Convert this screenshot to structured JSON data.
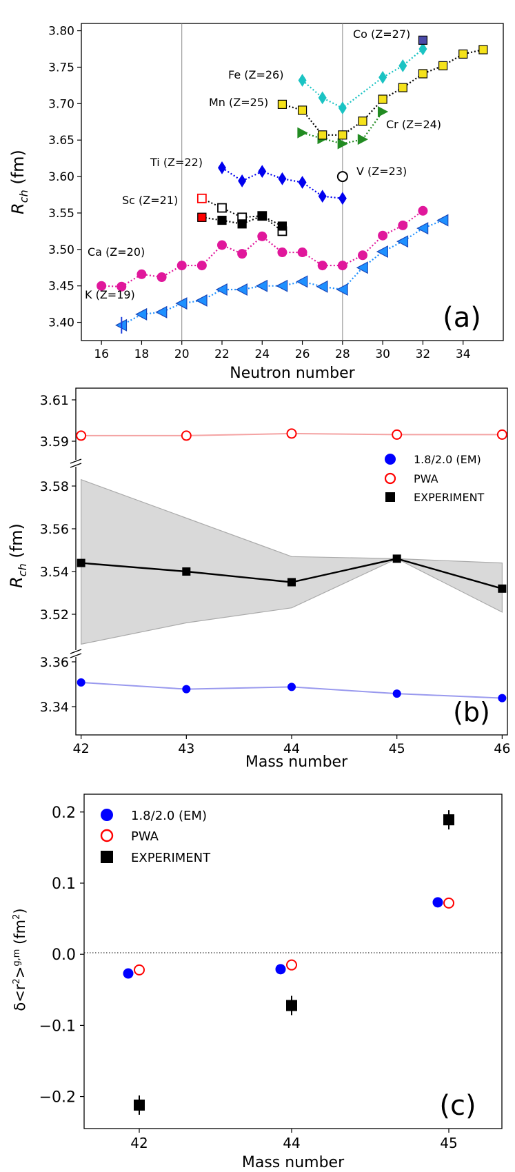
{
  "chart_data": [
    {
      "panel": "a",
      "type": "scatter",
      "panel_label": "(a)",
      "xlabel": "Neutron number",
      "ylabel": "R_ch (fm)",
      "ylabel_main": "R",
      "ylabel_sub": "ch",
      "ylabel_unit": " (fm)",
      "xlim": [
        15,
        36
      ],
      "ylim": [
        3.375,
        3.81
      ],
      "xticks": [
        16,
        18,
        20,
        22,
        24,
        26,
        28,
        30,
        32,
        34
      ],
      "yticks": [
        3.4,
        3.45,
        3.5,
        3.55,
        3.6,
        3.65,
        3.7,
        3.75,
        3.8
      ],
      "ytick_labels": [
        "3.40",
        "3.45",
        "3.50",
        "3.55",
        "3.60",
        "3.65",
        "3.70",
        "3.75",
        "3.80"
      ],
      "vlines": [
        20,
        28
      ],
      "series": [
        {
          "name": "K",
          "label": "K  (Z=19)",
          "color": "#1e90ff",
          "marker": "triangle-left",
          "x": [
            17,
            18,
            19,
            20,
            21,
            22,
            23,
            24,
            25,
            26,
            27,
            28,
            29,
            30,
            31,
            32,
            33
          ],
          "y": [
            3.396,
            3.411,
            3.414,
            3.426,
            3.43,
            3.445,
            3.445,
            3.45,
            3.45,
            3.456,
            3.449,
            3.445,
            3.475,
            3.497,
            3.511,
            3.529,
            3.54
          ]
        },
        {
          "name": "Ca",
          "label": "Ca (Z=20)",
          "color": "#e0179b",
          "marker": "circle",
          "x": [
            16,
            17,
            18,
            19,
            20,
            21,
            22,
            23,
            24,
            25,
            26,
            27,
            28,
            29,
            30,
            31,
            32
          ],
          "y": [
            3.45,
            3.449,
            3.466,
            3.462,
            3.478,
            3.478,
            3.506,
            3.494,
            3.518,
            3.496,
            3.496,
            3.478,
            3.478,
            3.492,
            3.519,
            3.533,
            3.553
          ]
        },
        {
          "name": "Sc",
          "label": "Sc (Z=21)",
          "color": "#000000",
          "marker": "square",
          "x": [
            21,
            22,
            23,
            24,
            25
          ],
          "y": [
            3.544,
            3.54,
            3.535,
            3.546,
            3.532
          ]
        },
        {
          "name": "Ti",
          "label": "Ti (Z=22)",
          "color": "#0000ee",
          "marker": "diamond",
          "x": [
            22,
            23,
            24,
            25,
            26,
            27,
            28
          ],
          "y": [
            3.612,
            3.594,
            3.607,
            3.597,
            3.592,
            3.573,
            3.57
          ]
        },
        {
          "name": "V",
          "label": "V (Z=23)",
          "color": "#000000",
          "marker": "open-circle",
          "x": [
            28
          ],
          "y": [
            3.6
          ]
        },
        {
          "name": "Cr",
          "label": "Cr (Z=24)",
          "color": "#228b22",
          "marker": "triangle-right",
          "x": [
            26,
            27,
            28,
            29,
            30
          ],
          "y": [
            3.66,
            3.652,
            3.645,
            3.651,
            3.689
          ]
        },
        {
          "name": "Mn",
          "label": "Mn (Z=25)",
          "color": "#f5e21b",
          "marker": "square",
          "x": [
            25,
            26,
            27,
            28,
            29,
            30,
            31,
            32,
            33,
            34,
            35
          ],
          "y": [
            3.699,
            3.691,
            3.657,
            3.657,
            3.676,
            3.706,
            3.722,
            3.741,
            3.752,
            3.768,
            3.774
          ]
        },
        {
          "name": "Fe",
          "label": "Fe (Z=26)",
          "color": "#1ac3c3",
          "marker": "diamond",
          "x": [
            26,
            27,
            28,
            30,
            31,
            32
          ],
          "y": [
            3.732,
            3.708,
            3.694,
            3.736,
            3.752,
            3.775
          ]
        },
        {
          "name": "Co",
          "label": "Co (Z=27)",
          "color": "#4a4aa8",
          "marker": "square",
          "x": [
            32
          ],
          "y": [
            3.787
          ]
        }
      ],
      "sc_pwa_open": {
        "x": [
          21,
          22,
          23,
          24,
          25
        ],
        "y": [
          3.57,
          3.557,
          3.544,
          3.546,
          3.525
        ]
      },
      "sc_highlight": {
        "x": 21,
        "y": 3.544
      },
      "annotations": [
        "Co (Z=27)",
        "Fe (Z=26)",
        "Mn (Z=25)",
        "Cr (Z=24)",
        "Ti (Z=22)",
        "V (Z=23)",
        "Sc (Z=21)",
        "Ca (Z=20)",
        "K  (Z=19)"
      ]
    },
    {
      "panel": "b",
      "type": "line",
      "panel_label": "(b)",
      "xlabel": "Mass number",
      "ylabel": "R_ch (fm)",
      "ylabel_main": "R",
      "ylabel_sub": "ch",
      "ylabel_unit": " (fm)",
      "x": [
        42,
        43,
        44,
        45,
        46
      ],
      "xlim": [
        41.95,
        46.05
      ],
      "xticks": [
        42,
        43,
        44,
        45,
        46
      ],
      "ytick_labels_upper": [
        "3.61",
        "3.59"
      ],
      "ytick_labels_middle": [
        "3.58",
        "3.56",
        "3.54",
        "3.52"
      ],
      "ytick_labels_lower": [
        "3.36",
        "3.34"
      ],
      "series": [
        {
          "name": "PWA",
          "color": "#ff0000",
          "line_color": "#f4a3a3",
          "marker": "open-circle",
          "values": [
            3.5927,
            3.5927,
            3.5937,
            3.5932,
            3.5932
          ]
        },
        {
          "name": "EXPERIMENT",
          "color": "#000000",
          "marker": "square",
          "values": [
            3.544,
            3.54,
            3.535,
            3.546,
            3.532
          ]
        },
        {
          "name": "1.8/2.0 (EM)",
          "color": "#0000ff",
          "line_color": "#9999ee",
          "marker": "circle",
          "values": [
            3.3508,
            3.3478,
            3.3488,
            3.3458,
            3.3438
          ]
        }
      ],
      "band_upper": [
        3.583,
        3.565,
        3.547,
        3.546,
        3.544
      ],
      "band_lower": [
        3.506,
        3.516,
        3.523,
        3.546,
        3.521
      ],
      "legend": [
        "1.8/2.0 (EM)",
        "PWA",
        "EXPERIMENT"
      ]
    },
    {
      "panel": "c",
      "type": "scatter",
      "panel_label": "(c)",
      "xlabel": "Mass number",
      "ylabel": "δ<r²>^(g,m) (fm²)",
      "ylabel_text": "δ<r",
      "ylabel_sup1": "2",
      "ylabel_mid": ">",
      "ylabel_sup2": "g,m",
      "ylabel_unit": " (fm",
      "ylabel_sup3": "2",
      "ylabel_close": ")",
      "categories": [
        "42",
        "44",
        "45"
      ],
      "ylim": [
        -0.245,
        0.225
      ],
      "yticks": [
        -0.2,
        -0.1,
        0.0,
        0.1,
        0.2
      ],
      "ytick_labels": [
        "−0.2",
        "−0.1",
        "0.0",
        "0.1",
        "0.2"
      ],
      "series": [
        {
          "name": "1.8/2.0 (EM)",
          "color": "#0000ff",
          "marker": "circle",
          "values": [
            -0.027,
            -0.021,
            0.073
          ]
        },
        {
          "name": "PWA",
          "color": "#ff0000",
          "marker": "open-circle",
          "values": [
            -0.022,
            -0.015,
            0.072
          ]
        },
        {
          "name": "EXPERIMENT",
          "color": "#000000",
          "marker": "square",
          "values": [
            -0.212,
            -0.072,
            0.189
          ]
        }
      ],
      "legend": [
        "1.8/2.0 (EM)",
        "PWA",
        "EXPERIMENT"
      ]
    }
  ]
}
